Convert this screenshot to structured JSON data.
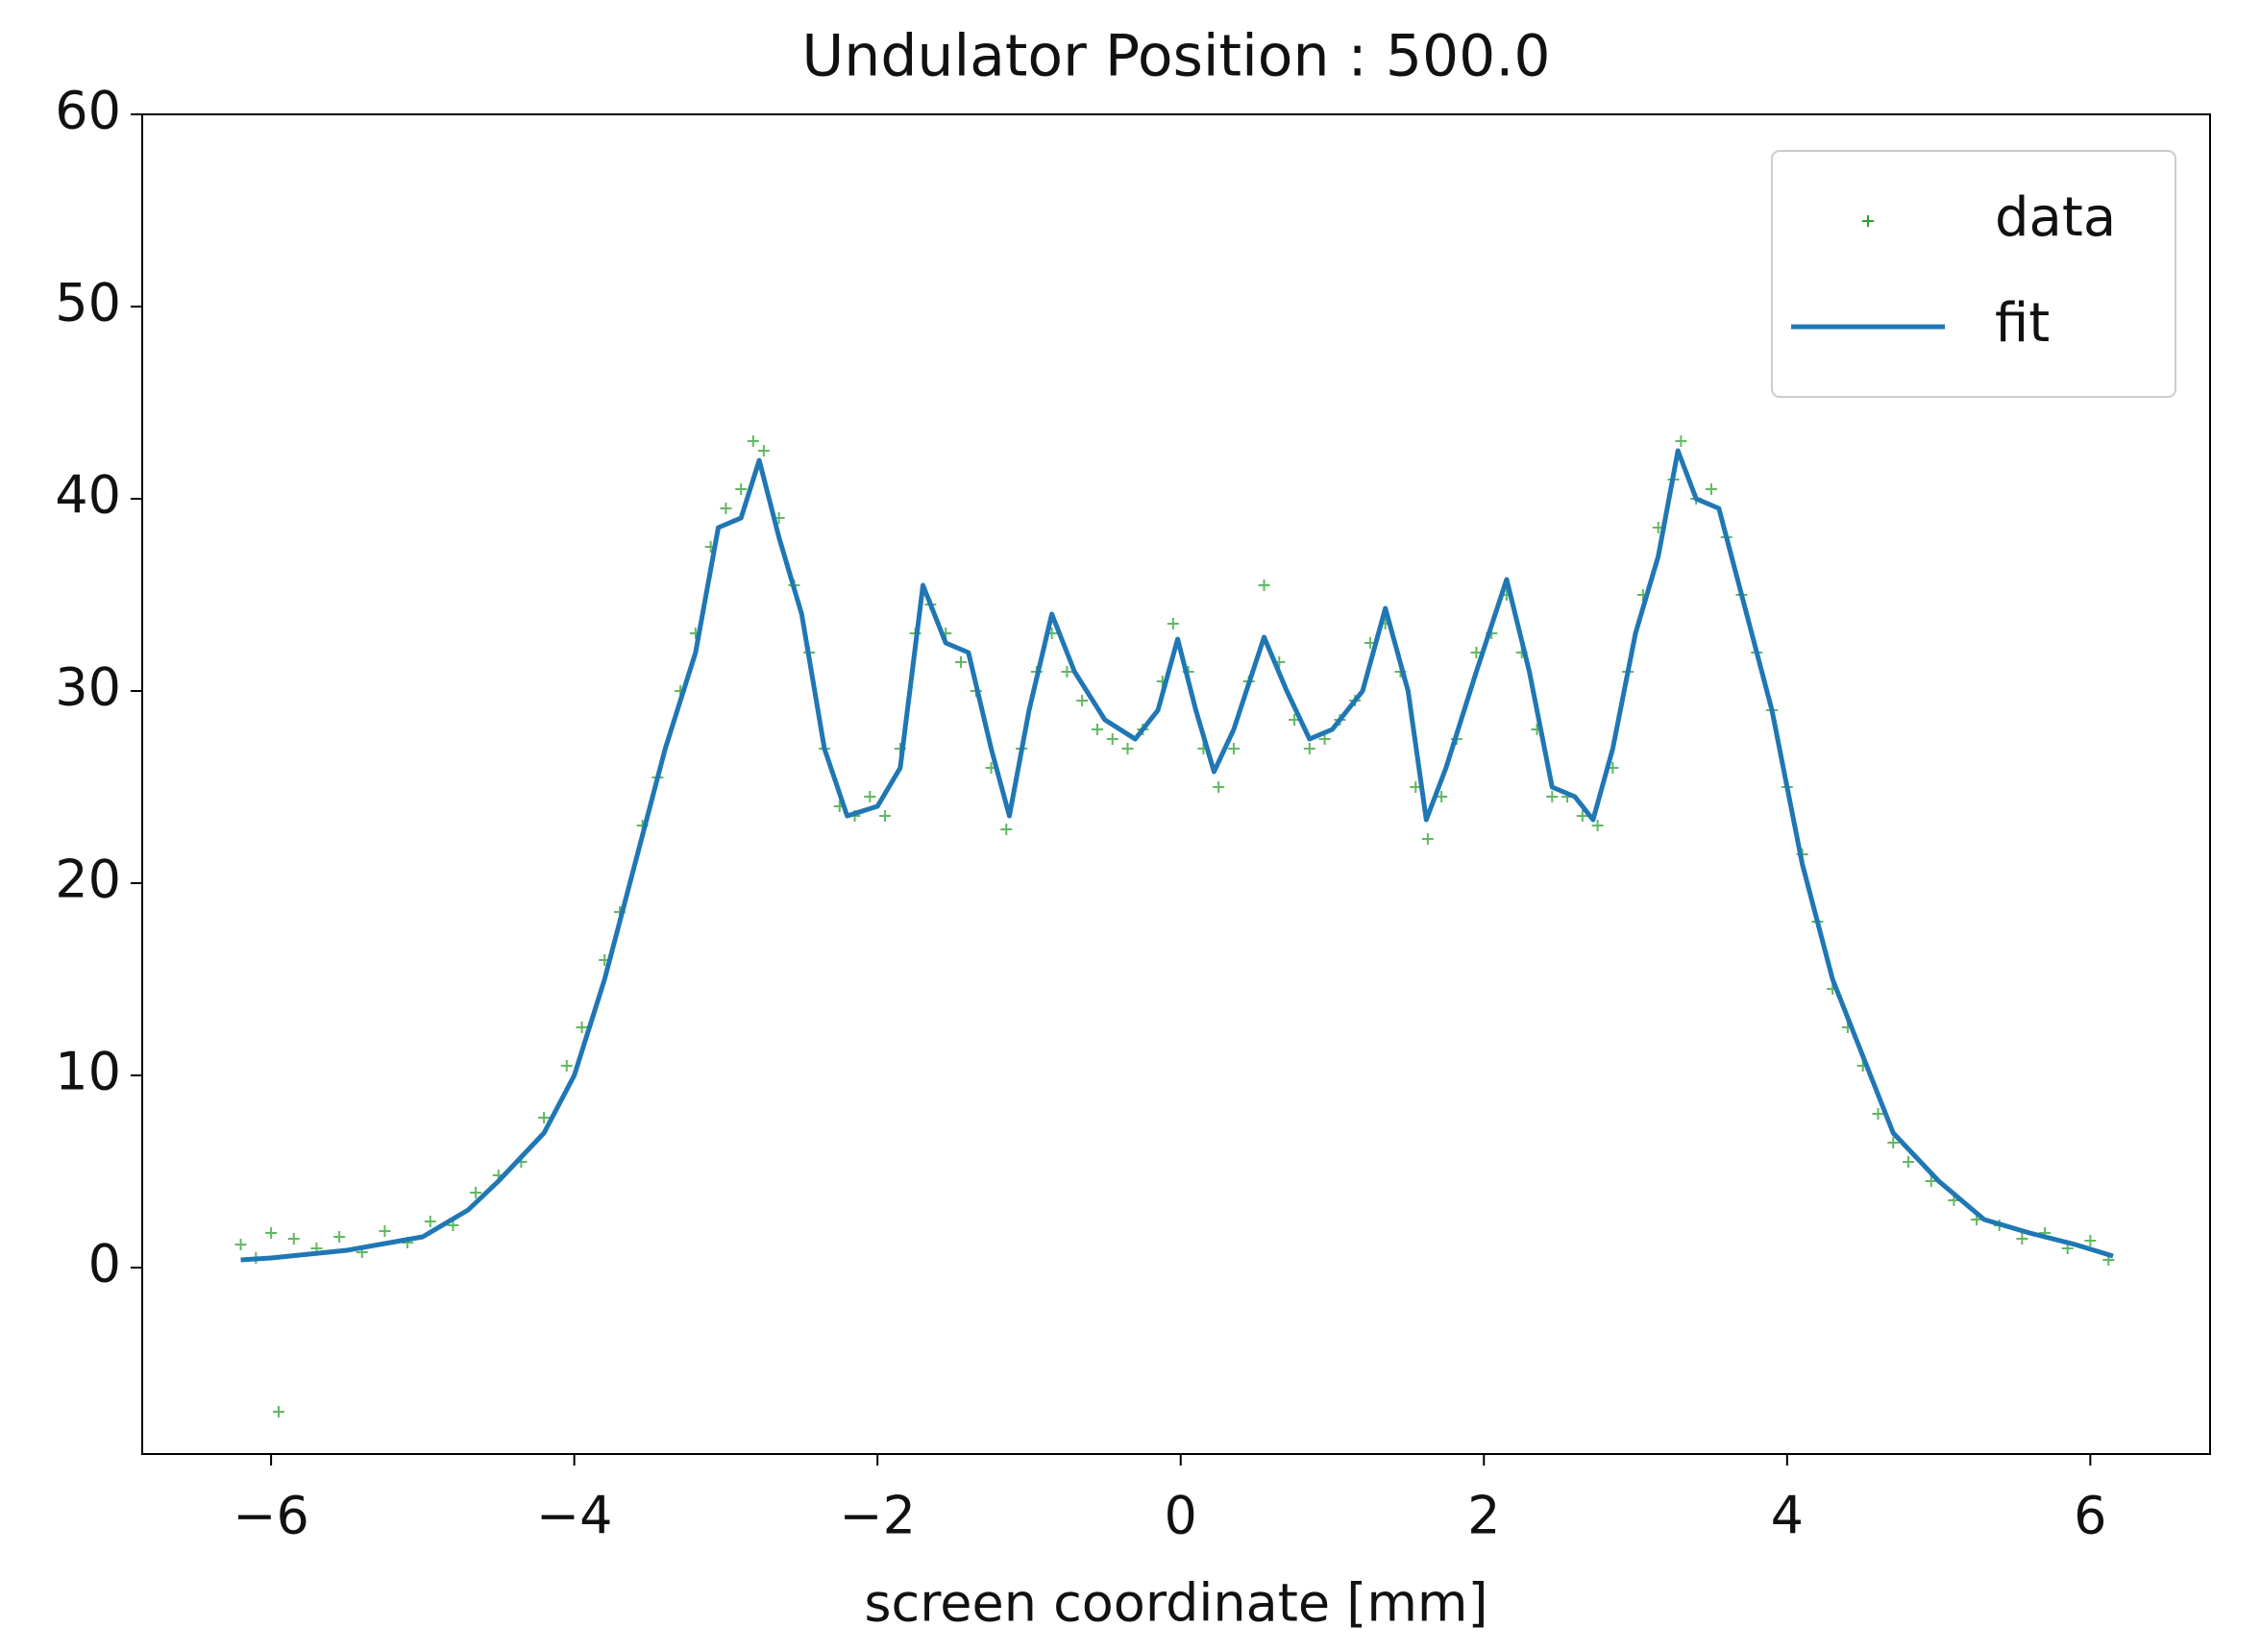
{
  "chart_data": {
    "type": "scatter",
    "title": "Undulator Position : 500.0",
    "x_label": "screen coordinate [mm]",
    "xlim": [
      -6.85,
      6.79
    ],
    "ylim": [
      -9.7,
      60
    ],
    "xticks": [
      {
        "value": -6,
        "label": "−6"
      },
      {
        "value": -4,
        "label": "−4"
      },
      {
        "value": -2,
        "label": "−2"
      },
      0,
      2,
      4,
      6
    ],
    "yticks": [
      0,
      10,
      20,
      30,
      40,
      50,
      60
    ],
    "grid": false,
    "legend": "upper right",
    "series": [
      {
        "name": "data",
        "type": "scatter",
        "color": "#2ca02c",
        "x": [
          -6.2,
          -6.1,
          -6.0,
          -5.95,
          -5.85,
          -5.7,
          -5.55,
          -5.4,
          -5.25,
          -5.1,
          -4.95,
          -4.8,
          -4.65,
          -4.5,
          -4.35,
          -4.2,
          -4.05,
          -3.95,
          -3.8,
          -3.7,
          -3.55,
          -3.45,
          -3.3,
          -3.2,
          -3.1,
          -3.0,
          -2.9,
          -2.82,
          -2.75,
          -2.65,
          -2.55,
          -2.45,
          -2.35,
          -2.25,
          -2.15,
          -2.05,
          -1.95,
          -1.85,
          -1.75,
          -1.65,
          -1.55,
          -1.45,
          -1.35,
          -1.25,
          -1.15,
          -1.05,
          -0.95,
          -0.85,
          -0.75,
          -0.65,
          -0.55,
          -0.45,
          -0.35,
          -0.25,
          -0.12,
          -0.05,
          0.05,
          0.15,
          0.25,
          0.35,
          0.45,
          0.55,
          0.65,
          0.75,
          0.85,
          0.95,
          1.05,
          1.15,
          1.25,
          1.35,
          1.45,
          1.55,
          1.63,
          1.72,
          1.82,
          1.95,
          2.05,
          2.15,
          2.25,
          2.35,
          2.45,
          2.55,
          2.65,
          2.75,
          2.85,
          2.95,
          3.05,
          3.15,
          3.25,
          3.3,
          3.4,
          3.5,
          3.6,
          3.7,
          3.8,
          3.9,
          4.0,
          4.1,
          4.2,
          4.3,
          4.4,
          4.5,
          4.6,
          4.7,
          4.8,
          4.95,
          5.1,
          5.25,
          5.4,
          5.55,
          5.7,
          5.85,
          6.0,
          6.12
        ],
        "values": [
          1.2,
          0.5,
          1.8,
          -7.5,
          1.5,
          1.0,
          1.6,
          0.8,
          1.9,
          1.3,
          2.4,
          2.2,
          3.9,
          4.8,
          5.5,
          7.8,
          10.5,
          12.5,
          16,
          18.5,
          23,
          25.5,
          30,
          33,
          37.5,
          39.5,
          40.5,
          43,
          42.5,
          39,
          35.5,
          32,
          27,
          24,
          23.5,
          24.5,
          23.5,
          27,
          33,
          34.5,
          33,
          31.5,
          30,
          26,
          22.8,
          27,
          31,
          33,
          31,
          29.5,
          28,
          27.5,
          27,
          28,
          30.5,
          33.5,
          31,
          27,
          25,
          27,
          30.5,
          35.5,
          31.5,
          28.5,
          27,
          27.5,
          28.5,
          29.5,
          32.5,
          33.5,
          31,
          25,
          22.3,
          24.5,
          27.5,
          32,
          33,
          35,
          32,
          28,
          24.5,
          24.5,
          23.5,
          23,
          26,
          31,
          35,
          38.5,
          41,
          43,
          40,
          40.5,
          38,
          35,
          32,
          29,
          25,
          21.5,
          18,
          14.5,
          12.5,
          10.5,
          8,
          6.5,
          5.5,
          4.5,
          3.5,
          2.5,
          2.2,
          1.5,
          1.8,
          1.0,
          1.4,
          0.4
        ]
      },
      {
        "name": "fit",
        "type": "line",
        "color": "#1f77b4",
        "x": [
          -6.2,
          -6.0,
          -5.5,
          -5.0,
          -4.7,
          -4.5,
          -4.2,
          -4.0,
          -3.8,
          -3.6,
          -3.4,
          -3.2,
          -3.05,
          -2.9,
          -2.78,
          -2.65,
          -2.5,
          -2.35,
          -2.2,
          -2.0,
          -1.85,
          -1.7,
          -1.55,
          -1.4,
          -1.25,
          -1.13,
          -1.0,
          -0.85,
          -0.7,
          -0.5,
          -0.3,
          -0.15,
          -0.02,
          0.1,
          0.22,
          0.35,
          0.55,
          0.7,
          0.85,
          1.0,
          1.2,
          1.35,
          1.5,
          1.62,
          1.75,
          1.95,
          2.15,
          2.3,
          2.45,
          2.6,
          2.72,
          2.85,
          3.0,
          3.15,
          3.28,
          3.4,
          3.55,
          3.7,
          3.9,
          4.1,
          4.3,
          4.5,
          4.7,
          5.0,
          5.3,
          5.6,
          5.9,
          6.15
        ],
        "values": [
          0.4,
          0.5,
          0.9,
          1.6,
          3,
          4.5,
          7,
          10,
          15,
          21,
          27,
          32,
          38.5,
          39,
          42,
          38,
          34,
          27,
          23.5,
          24,
          26,
          35.5,
          32.5,
          32,
          27,
          23.5,
          29,
          34,
          31,
          28.5,
          27.5,
          29,
          32.7,
          29,
          25.8,
          28,
          32.8,
          30,
          27.5,
          28,
          30,
          34.3,
          30,
          23.3,
          26,
          31,
          35.8,
          31,
          25,
          24.5,
          23.3,
          27,
          33,
          37,
          42.5,
          40,
          39.5,
          35,
          29,
          21,
          15,
          11,
          7,
          4.5,
          2.5,
          1.8,
          1.2,
          0.6
        ]
      }
    ]
  }
}
